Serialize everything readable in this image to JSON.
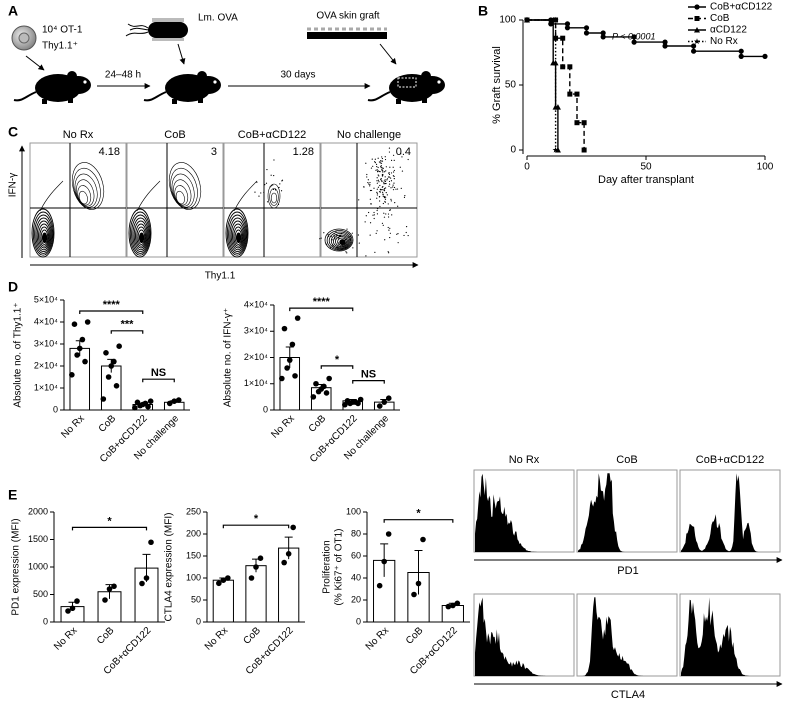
{
  "panel_labels": [
    "A",
    "B",
    "C",
    "D",
    "E"
  ],
  "schematic": {
    "cells": "10⁴ OT-1",
    "cells_marker": "Thy1.1⁺",
    "infection": "Lm. OVA",
    "interval_1": "24–48 h",
    "interval_2": "30 days",
    "graft": "OVA skin graft"
  },
  "flow": {
    "y_label": "IFN-γ",
    "x_label": "Thy1.1",
    "panels": [
      {
        "title": "No Rx",
        "percent": 4.18
      },
      {
        "title": "CoB",
        "percent": 3
      },
      {
        "title": "CoB+αCD122",
        "percent": 1.28
      },
      {
        "title": "No challenge",
        "percent": 0.4
      }
    ]
  },
  "histograms": {
    "columns": [
      "No Rx",
      "CoB",
      "CoB+αCD122"
    ],
    "rows": [
      "PD1",
      "CTLA4"
    ]
  },
  "chart_data": [
    {
      "type": "line",
      "xlabel": "Day after transplant",
      "ylabel": "% Graft survival",
      "annotation": "P < 0.0001",
      "xlim": [
        0,
        100
      ],
      "xticks": [
        0,
        50,
        100
      ],
      "ylim": [
        0,
        100
      ],
      "yticks": [
        0,
        50,
        100
      ],
      "series": [
        {
          "name": "CoB+αCD122",
          "color": "#000000",
          "marker": "circle",
          "dash": "solid",
          "x": [
            0,
            10,
            10,
            17,
            17,
            25,
            25,
            32,
            32,
            45,
            45,
            58,
            58,
            70,
            70,
            90,
            90,
            100
          ],
          "values": [
            100,
            100,
            97,
            97,
            94,
            94,
            90,
            90,
            87,
            87,
            83,
            83,
            80,
            80,
            76,
            76,
            72,
            72
          ]
        },
        {
          "name": "CoB",
          "color": "#000000",
          "marker": "square",
          "dash": "dashed",
          "x": [
            0,
            12,
            12,
            15,
            15,
            18,
            18,
            21,
            21,
            24,
            24
          ],
          "values": [
            100,
            100,
            86,
            86,
            64,
            64,
            43,
            43,
            21,
            21,
            0
          ]
        },
        {
          "name": "αCD122",
          "color": "#000000",
          "marker": "triangle",
          "dash": "solid",
          "x": [
            0,
            11,
            11,
            12,
            12,
            13,
            13
          ],
          "values": [
            100,
            100,
            67,
            67,
            33,
            33,
            0
          ]
        },
        {
          "name": "No Rx",
          "color": "#000000",
          "marker": "star",
          "dash": "dotted",
          "x": [
            0,
            12,
            12
          ],
          "values": [
            100,
            100,
            0
          ]
        }
      ]
    },
    {
      "type": "bar",
      "color": "#ffffff",
      "ylabel": "Absolute no. of Thy1.1⁺",
      "categories": [
        "No Rx",
        "CoB",
        "CoB+αCD122",
        "No challenge"
      ],
      "values": [
        28000,
        20000,
        2500,
        3500
      ],
      "errors": [
        3500,
        3000,
        500,
        700
      ],
      "points": [
        [
          40000,
          39000,
          32000,
          28000,
          25000,
          22000,
          16000
        ],
        [
          29000,
          26000,
          22000,
          20000,
          15000,
          11000,
          5000
        ],
        [
          4000,
          3500,
          3000,
          2500,
          2000,
          1500,
          1000
        ],
        [
          4500,
          4000,
          3000
        ]
      ],
      "annotations": [
        "****",
        "***",
        "NS"
      ],
      "ylim": [
        0,
        50000
      ],
      "yticks": [
        0,
        {
          "value": 10000,
          "label": "1×10⁴"
        },
        {
          "value": 20000,
          "label": "2×10⁴"
        },
        {
          "value": 30000,
          "label": "3×10⁴"
        },
        {
          "value": 40000,
          "label": "4×10⁴"
        },
        {
          "value": 50000,
          "label": "5×10⁴"
        }
      ]
    },
    {
      "type": "bar",
      "color": "#ffffff",
      "ylabel": "Absolute no. of IFN-γ⁺",
      "categories": [
        "No Rx",
        "CoB",
        "CoB+αCD122",
        "No challenge"
      ],
      "values": [
        20000,
        8500,
        3500,
        3000
      ],
      "errors": [
        4000,
        1200,
        500,
        1000
      ],
      "points": [
        [
          35000,
          31000,
          25000,
          19000,
          16000,
          13000,
          12000
        ],
        [
          12000,
          10000,
          9000,
          8000,
          7000,
          6500,
          5000
        ],
        [
          4000,
          3500,
          3000,
          3000,
          2500,
          2500,
          2000
        ],
        [
          4500,
          3000,
          1500
        ]
      ],
      "annotations": [
        "****",
        "*",
        "NS"
      ],
      "ylim": [
        0,
        40000
      ],
      "yticks": [
        0,
        {
          "value": 10000,
          "label": "1×10⁴"
        },
        {
          "value": 20000,
          "label": "2×10⁴"
        },
        {
          "value": 30000,
          "label": "3×10⁴"
        },
        {
          "value": 40000,
          "label": "4×10⁴"
        }
      ]
    },
    {
      "type": "bar",
      "color": "#ffffff",
      "ylabel": "PD1 expression (MFI)",
      "categories": [
        "No Rx",
        "CoB",
        "CoB+αCD122"
      ],
      "values": [
        280,
        550,
        980
      ],
      "errors": [
        80,
        130,
        250
      ],
      "points": [
        [
          380,
          250,
          200
        ],
        [
          650,
          600,
          400
        ],
        [
          1450,
          800,
          700
        ]
      ],
      "annotations": [
        "*"
      ],
      "ylim": [
        0,
        2000
      ],
      "yticks": [
        0,
        500,
        1000,
        1500,
        2000
      ]
    },
    {
      "type": "bar",
      "color": "#ffffff",
      "ylabel": "CTLA4 expression (MFI)",
      "categories": [
        "No Rx",
        "CoB",
        "CoB+αCD122"
      ],
      "values": [
        95,
        128,
        168
      ],
      "errors": [
        5,
        15,
        25
      ],
      "points": [
        [
          100,
          95,
          88
        ],
        [
          145,
          125,
          100
        ],
        [
          215,
          155,
          135
        ]
      ],
      "annotations": [
        "*"
      ],
      "ylim": [
        0,
        250
      ],
      "yticks": [
        0,
        50,
        100,
        150,
        200,
        250
      ]
    },
    {
      "type": "bar",
      "color": "#ffffff",
      "ylabel": [
        "Proliferation",
        "(% Ki67⁺ of OT1)"
      ],
      "categories": [
        "No Rx",
        "CoB",
        "CoB+αCD122"
      ],
      "values": [
        56,
        45,
        15
      ],
      "errors": [
        15,
        20,
        2
      ],
      "points": [
        [
          80,
          55,
          33
        ],
        [
          75,
          35,
          25
        ],
        [
          17,
          15,
          14
        ]
      ],
      "annotations": [
        "*"
      ],
      "ylim": [
        0,
        100
      ],
      "yticks": [
        0,
        20,
        40,
        60,
        80,
        100
      ]
    }
  ]
}
